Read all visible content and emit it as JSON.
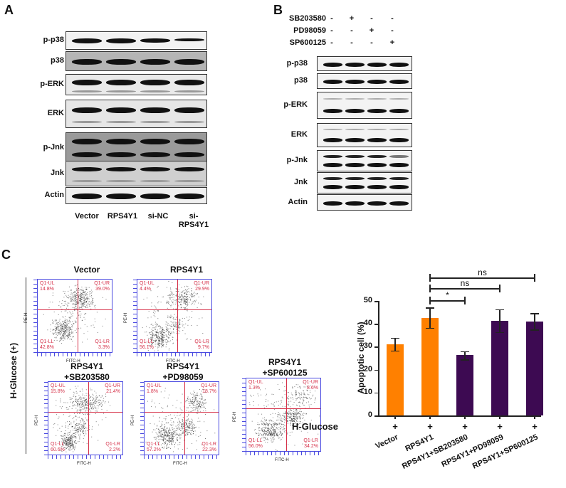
{
  "panel_a": {
    "letter": "A",
    "rows": [
      "p-p38",
      "p38",
      "p-ERK",
      "ERK",
      "p-Jnk",
      "Jnk",
      "Actin"
    ],
    "lanes": [
      "Vector",
      "RPS4Y1",
      "si-NC",
      "si-RPS4Y1"
    ]
  },
  "panel_b": {
    "letter": "B",
    "treatments": [
      {
        "name": "SB203580",
        "signs": [
          "-",
          "+",
          "-",
          "-"
        ]
      },
      {
        "name": "PD98059",
        "signs": [
          "-",
          "-",
          "+",
          "-"
        ]
      },
      {
        "name": "SP600125",
        "signs": [
          "-",
          "-",
          "-",
          "+"
        ]
      }
    ],
    "rows": [
      "p-p38",
      "p38",
      "p-ERK",
      "ERK",
      "p-Jnk",
      "Jnk",
      "Actin"
    ]
  },
  "panel_c": {
    "letter": "C",
    "side_label": "H-Glucose (+)",
    "flow_plots": [
      {
        "title_line1": "Vector",
        "title_line2": "",
        "ul": "14.8%",
        "ur": "39.0%",
        "ll": "42.8%",
        "lr": "3.3%"
      },
      {
        "title_line1": "RPS4Y1",
        "title_line2": "",
        "ul": "4.4%",
        "ur": "29.9%",
        "ll": "56.1%",
        "lr": "9.7%"
      },
      {
        "title_line1": "RPS4Y1",
        "title_line2": "+SB203580",
        "ul": "15.8%",
        "ur": "21.4%",
        "ll": "60.6%",
        "lr": "2.2%"
      },
      {
        "title_line1": "RPS4Y1",
        "title_line2": "+PD98059",
        "ul": "1.8%",
        "ur": "18.7%",
        "ll": "57.2%",
        "lr": "22.3%"
      },
      {
        "title_line1": "RPS4Y1",
        "title_line2": "+SP600125",
        "ul": "1.3%",
        "ur": "8.6%",
        "ll": "56.0%",
        "lr": "34.2%"
      }
    ],
    "quadrant_names": {
      "ul": "Q1-UL",
      "ur": "Q1-UR",
      "ll": "Q1-LL",
      "lr": "Q1-LR"
    },
    "x_axis_label": "FITC-H",
    "y_axis_label": "PE-H"
  },
  "chart_data": {
    "type": "bar",
    "title": "",
    "xlabel": "",
    "ylabel": "Apoptotic cell (%)",
    "ylim": [
      0,
      50
    ],
    "yticks": [
      0,
      10,
      20,
      30,
      40,
      50
    ],
    "categories": [
      "Vector",
      "RPS4Y1",
      "RPS4Y1+SB203580",
      "RPS4Y1+PD98059",
      "RPS4Y1+SP600125"
    ],
    "values": [
      31.2,
      42.7,
      26.3,
      41.4,
      41.1
    ],
    "errors": [
      2.8,
      4.5,
      1.8,
      5.0,
      3.6
    ],
    "colors": [
      "#ff8000",
      "#ff8000",
      "#3d0a52",
      "#3d0a52",
      "#3d0a52"
    ],
    "row_label": "H-Glucose",
    "row_signs": [
      "+",
      "+",
      "+",
      "+",
      "+"
    ],
    "significance": [
      {
        "from": "RPS4Y1",
        "to": "RPS4Y1+SB203580",
        "label": "*"
      },
      {
        "from": "RPS4Y1",
        "to": "RPS4Y1+PD98059",
        "label": "ns"
      },
      {
        "from": "RPS4Y1",
        "to": "RPS4Y1+SP600125",
        "label": "ns"
      }
    ],
    "grid": false,
    "legend": null
  }
}
